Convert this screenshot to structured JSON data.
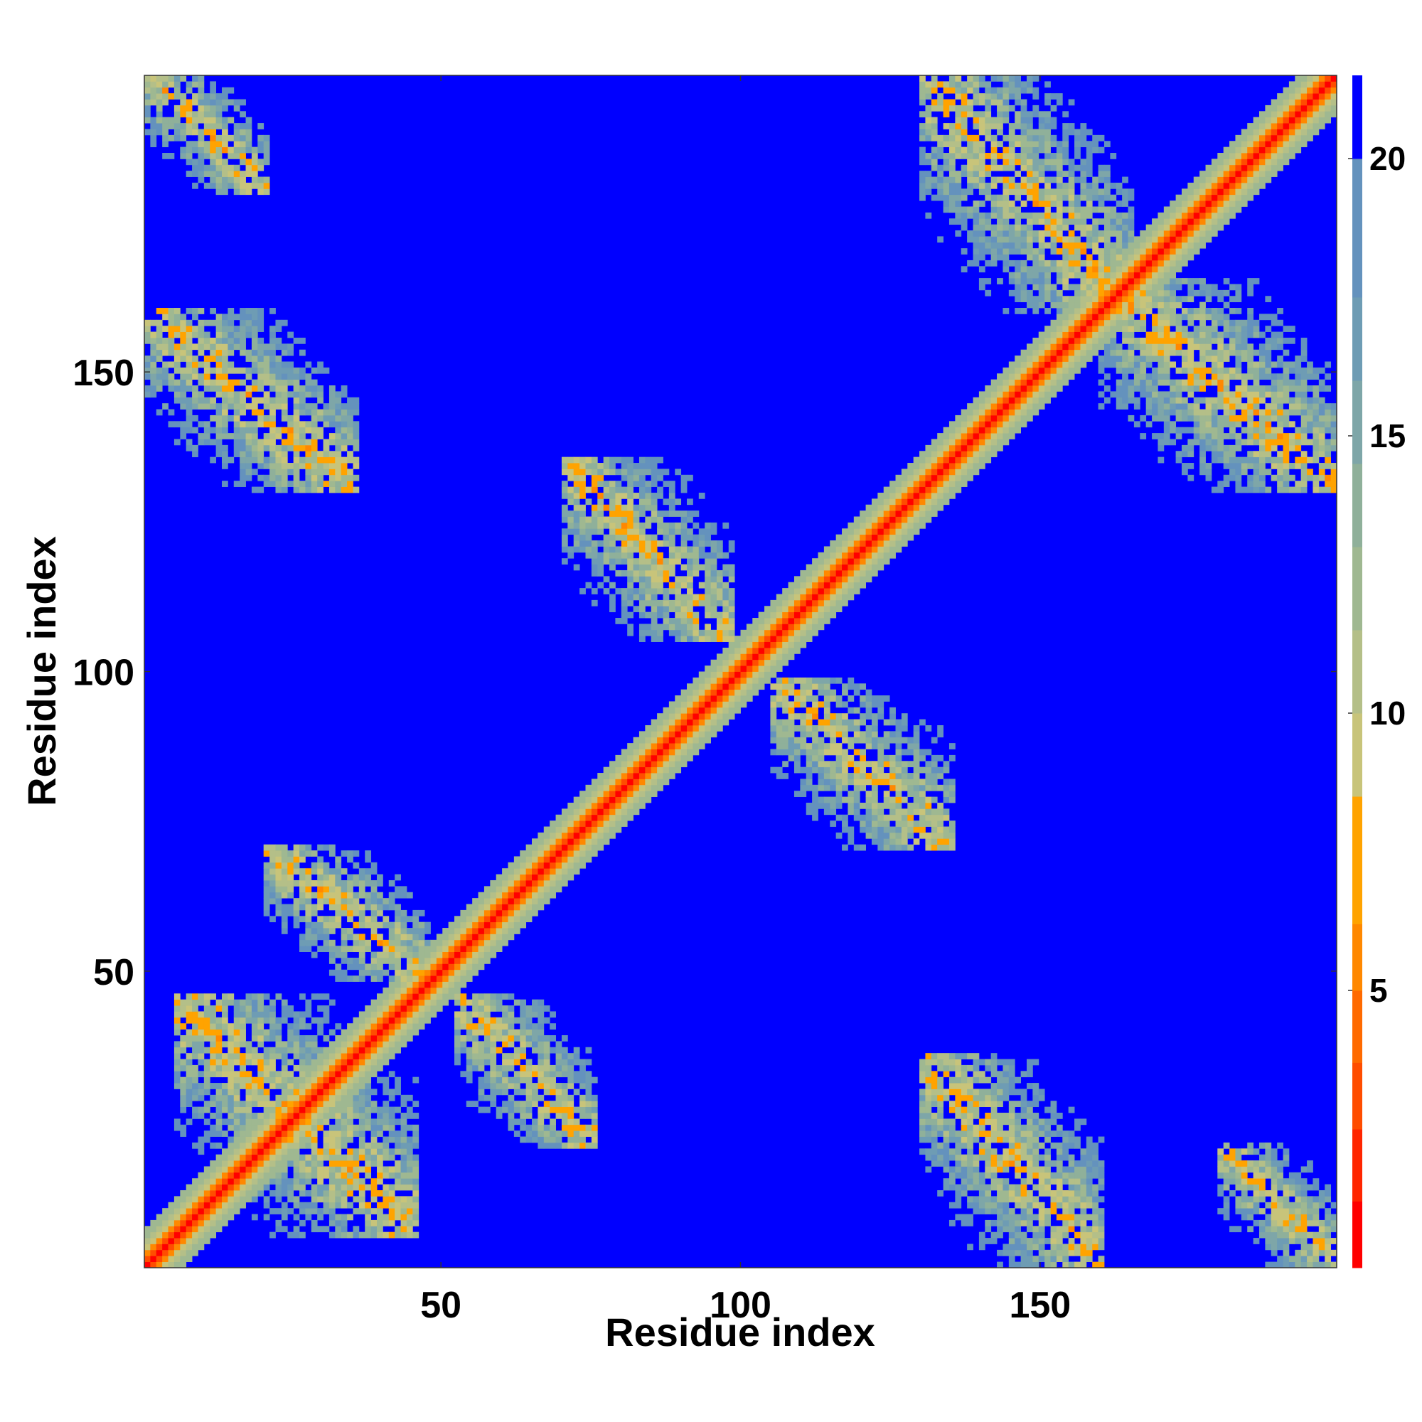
{
  "chart_data": {
    "type": "heatmap",
    "title": "",
    "xlabel": "Residue index",
    "ylabel": "Residue index",
    "n_residues": 200,
    "xlim": [
      0.5,
      199.5
    ],
    "ylim": [
      0.5,
      199.5
    ],
    "x_ticks": [
      50,
      100,
      150
    ],
    "y_ticks": [
      50,
      100,
      150
    ],
    "x_tick_labels": [
      "50",
      "100",
      "150"
    ],
    "y_tick_labels": [
      "50",
      "100",
      "150"
    ],
    "grid": false,
    "colorbar": {
      "range": [
        0,
        21.5
      ],
      "saturate_above": 20,
      "ticks": [
        5,
        10,
        15,
        20
      ],
      "tick_labels": [
        "5",
        "10",
        "15",
        "20"
      ],
      "colors": [
        "#ff0000",
        "#ff2600",
        "#ff4d00",
        "#ff6a00",
        "#ff8800",
        "#ffa300",
        "#c8c47a",
        "#b4bf88",
        "#9fb891",
        "#8fb09a",
        "#7ea6a8",
        "#6e9cb4",
        "#6492bd",
        "#0000ff"
      ],
      "level_bounds": [
        0,
        1.2,
        2.5,
        3.7,
        5.0,
        6.2,
        8.5,
        10.0,
        11.5,
        13.0,
        14.5,
        16.0,
        17.5,
        20.0
      ]
    },
    "matrix_description_values": {
      "diagonal_distance": 3.8,
      "helix_contact_distance": 5.5,
      "background_distance": 21
    },
    "contact_bands": [
      {
        "x": [
          5,
          45
        ],
        "y": [
          5,
          45
        ],
        "orientation": "anti"
      },
      {
        "x": [
          20,
          47
        ],
        "y": [
          48,
          70
        ],
        "orientation": "anti"
      },
      {
        "x": [
          52,
          75
        ],
        "y": [
          20,
          45
        ],
        "orientation": "anti"
      },
      {
        "x": [
          70,
          98
        ],
        "y": [
          105,
          135
        ],
        "orientation": "anti"
      },
      {
        "x": [
          105,
          135
        ],
        "y": [
          70,
          98
        ],
        "orientation": "anti"
      },
      {
        "x": [
          0,
          35
        ],
        "y": [
          130,
          160
        ],
        "orientation": "anti"
      },
      {
        "x": [
          130,
          160
        ],
        "y": [
          0,
          35
        ],
        "orientation": "anti"
      },
      {
        "x": [
          130,
          165
        ],
        "y": [
          160,
          200
        ],
        "orientation": "anti"
      },
      {
        "x": [
          160,
          200
        ],
        "y": [
          130,
          165
        ],
        "orientation": "anti"
      },
      {
        "x": [
          0,
          20
        ],
        "y": [
          180,
          200
        ],
        "orientation": "anti"
      },
      {
        "x": [
          180,
          200
        ],
        "y": [
          0,
          20
        ],
        "orientation": "anti"
      }
    ]
  }
}
